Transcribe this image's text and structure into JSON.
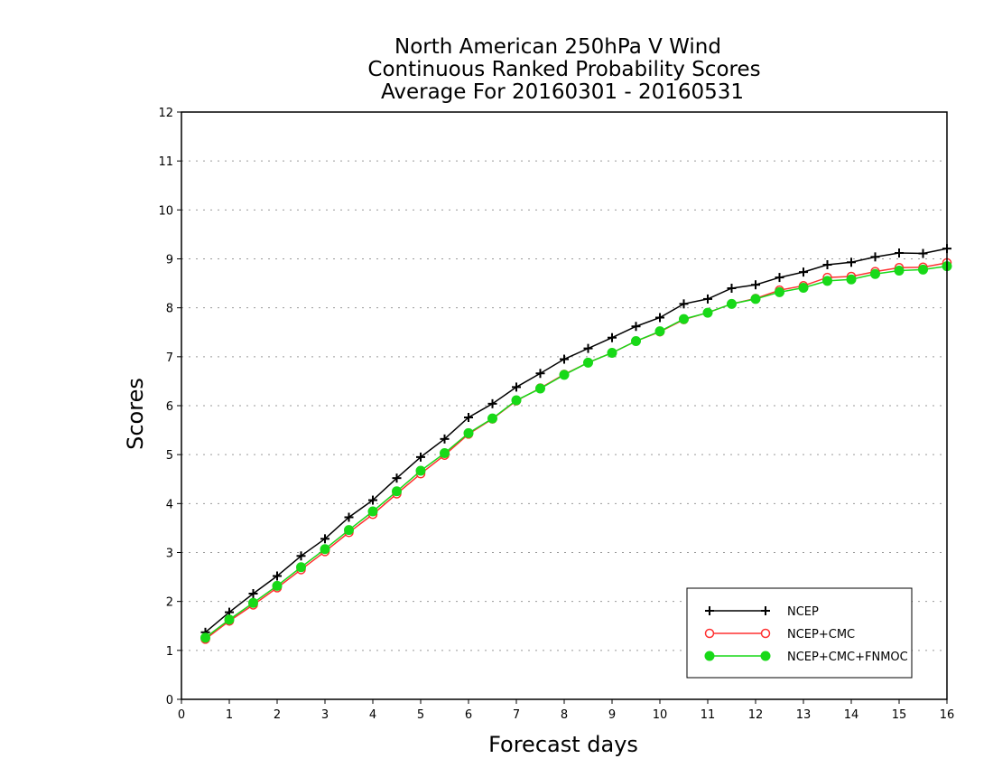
{
  "chart_data": {
    "type": "line",
    "title": [
      "North American 250hPa V Wind",
      "Continuous Ranked Probability Scores",
      "Average For 20160301 - 20160531"
    ],
    "xlabel": "Forecast days",
    "ylabel": "Scores",
    "xlim": [
      0,
      16
    ],
    "ylim": [
      0,
      12
    ],
    "xticks": [
      0,
      1,
      2,
      3,
      4,
      5,
      6,
      7,
      8,
      9,
      10,
      11,
      12,
      13,
      14,
      15,
      16
    ],
    "yticks": [
      0,
      1,
      2,
      3,
      4,
      5,
      6,
      7,
      8,
      9,
      10,
      11,
      12
    ],
    "grid": true,
    "legend_position": "bottom-right",
    "x": [
      0.5,
      1,
      1.5,
      2,
      2.5,
      3,
      3.5,
      4,
      4.5,
      5,
      5.5,
      6,
      6.5,
      7,
      7.5,
      8,
      8.5,
      9,
      9.5,
      10,
      10.5,
      11,
      11.5,
      12,
      12.5,
      13,
      13.5,
      14,
      14.5,
      15,
      15.5,
      16
    ],
    "series": [
      {
        "name": "NCEP",
        "color": "#000000",
        "marker": "plus",
        "values": [
          1.37,
          1.78,
          2.16,
          2.52,
          2.93,
          3.28,
          3.72,
          4.07,
          4.52,
          4.95,
          5.32,
          5.76,
          6.04,
          6.38,
          6.66,
          6.95,
          7.17,
          7.39,
          7.62,
          7.8,
          8.08,
          8.18,
          8.4,
          8.47,
          8.62,
          8.73,
          8.88,
          8.93,
          9.04,
          9.12,
          9.11,
          9.21
        ]
      },
      {
        "name": "NCEP+CMC",
        "color": "#ff3030",
        "marker": "open-circle",
        "values": [
          1.23,
          1.6,
          1.93,
          2.28,
          2.65,
          3.02,
          3.41,
          3.78,
          4.2,
          4.61,
          4.99,
          5.42,
          5.73,
          6.1,
          6.36,
          6.64,
          6.88,
          7.08,
          7.32,
          7.51,
          7.76,
          7.9,
          8.08,
          8.19,
          8.36,
          8.45,
          8.62,
          8.64,
          8.74,
          8.82,
          8.83,
          8.92
        ]
      },
      {
        "name": "NCEP+CMC+FNMOC",
        "color": "#18d918",
        "marker": "filled-circle",
        "values": [
          1.26,
          1.63,
          1.97,
          2.32,
          2.7,
          3.07,
          3.46,
          3.84,
          4.25,
          4.67,
          5.03,
          5.44,
          5.74,
          6.11,
          6.35,
          6.63,
          6.88,
          7.08,
          7.32,
          7.52,
          7.77,
          7.9,
          8.08,
          8.18,
          8.32,
          8.41,
          8.55,
          8.58,
          8.69,
          8.76,
          8.78,
          8.85
        ]
      }
    ]
  }
}
